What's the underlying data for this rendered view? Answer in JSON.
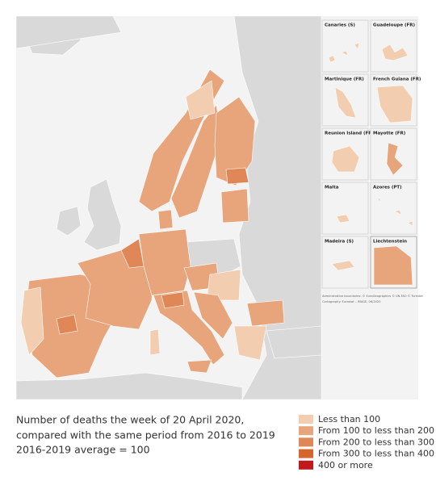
{
  "caption": {
    "lines": [
      "Number of deaths the week of 20 April 2020,",
      "compared with the same period from 2016 to 2019",
      "2016-2019 average = 100"
    ]
  },
  "legend": [
    {
      "label": "Less than 100",
      "color": "#f2cdb0"
    },
    {
      "label": "From 100 to less than 200",
      "color": "#e8a57c"
    },
    {
      "label": "From 200 to less than 300",
      "color": "#df8757"
    },
    {
      "label": "From 300 to less than 400",
      "color": "#d5652c"
    },
    {
      "label": "400 or more",
      "color": "#c0181c"
    }
  ],
  "insets": [
    "Canaries (S)",
    "Guadeloupe (FR)",
    "Martinique (FR)",
    "French Guiana (FR)",
    "Reunion Island (FR)",
    "Mayotte (FR)",
    "Malta",
    "Azores (PT)",
    "Madeira (S)",
    "Liechtenstein"
  ],
  "attribution": [
    "Administrative boundaries: © EuroGeographics © UN-FAO © Turkstat",
    "Cartography: Eurostat – IMAGE, 06/2020"
  ]
}
